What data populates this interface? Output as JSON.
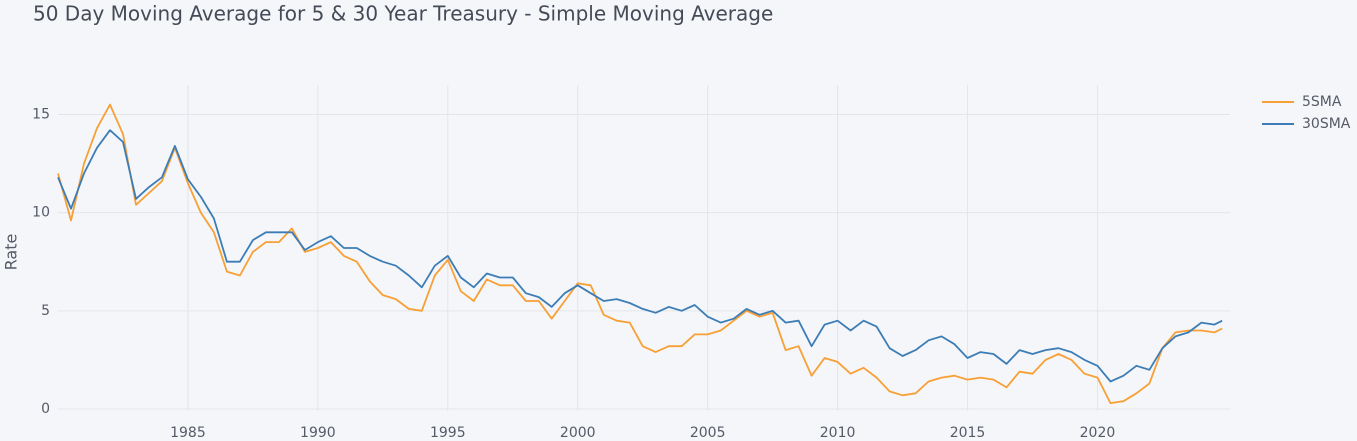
{
  "chart_data": {
    "type": "line",
    "title": "50 Day Moving Average for 5 & 30 Year Treasury - Simple Moving Average",
    "y_label": "Rate",
    "x": [
      1980.0,
      1980.5,
      1981.0,
      1981.5,
      1982.0,
      1982.5,
      1983.0,
      1983.5,
      1984.0,
      1984.5,
      1985.0,
      1985.5,
      1986.0,
      1986.5,
      1987.0,
      1987.5,
      1988.0,
      1988.5,
      1989.0,
      1989.5,
      1990.0,
      1990.5,
      1991.0,
      1991.5,
      1992.0,
      1992.5,
      1993.0,
      1993.5,
      1994.0,
      1994.5,
      1995.0,
      1995.5,
      1996.0,
      1996.5,
      1997.0,
      1997.5,
      1998.0,
      1998.5,
      1999.0,
      1999.5,
      2000.0,
      2000.5,
      2001.0,
      2001.5,
      2002.0,
      2002.5,
      2003.0,
      2003.5,
      2004.0,
      2004.5,
      2005.0,
      2005.5,
      2006.0,
      2006.5,
      2007.0,
      2007.5,
      2008.0,
      2008.5,
      2009.0,
      2009.5,
      2010.0,
      2010.5,
      2011.0,
      2011.5,
      2012.0,
      2012.5,
      2013.0,
      2013.5,
      2014.0,
      2014.5,
      2015.0,
      2015.5,
      2016.0,
      2016.5,
      2017.0,
      2017.5,
      2018.0,
      2018.5,
      2019.0,
      2019.5,
      2020.0,
      2020.5,
      2021.0,
      2021.5,
      2022.0,
      2022.5,
      2023.0,
      2023.5,
      2024.0,
      2024.5,
      2024.8
    ],
    "series": [
      {
        "name": "5SMA",
        "color": "#f7a035",
        "values": [
          12.0,
          9.6,
          12.5,
          14.3,
          15.5,
          14.0,
          10.4,
          11.0,
          11.6,
          13.3,
          11.5,
          10.0,
          9.0,
          7.0,
          6.8,
          8.0,
          8.5,
          8.5,
          9.2,
          8.0,
          8.2,
          8.5,
          7.8,
          7.5,
          6.5,
          5.8,
          5.6,
          5.1,
          5.0,
          6.8,
          7.6,
          6.0,
          5.5,
          6.6,
          6.3,
          6.3,
          5.5,
          5.5,
          4.6,
          5.5,
          6.4,
          6.3,
          4.8,
          4.5,
          4.4,
          3.2,
          2.9,
          3.2,
          3.2,
          3.8,
          3.8,
          4.0,
          4.5,
          5.0,
          4.7,
          4.9,
          3.0,
          3.2,
          1.7,
          2.6,
          2.4,
          1.8,
          2.1,
          1.6,
          0.9,
          0.7,
          0.8,
          1.4,
          1.6,
          1.7,
          1.5,
          1.6,
          1.5,
          1.1,
          1.9,
          1.8,
          2.5,
          2.8,
          2.5,
          1.8,
          1.6,
          0.3,
          0.4,
          0.8,
          1.3,
          3.1,
          3.9,
          4.0,
          4.0,
          3.9,
          4.1
        ]
      },
      {
        "name": "30SMA",
        "color": "#3d7db5",
        "values": [
          11.8,
          10.2,
          12.0,
          13.3,
          14.2,
          13.6,
          10.7,
          11.3,
          11.8,
          13.4,
          11.7,
          10.8,
          9.7,
          7.5,
          7.5,
          8.6,
          9.0,
          9.0,
          9.0,
          8.1,
          8.5,
          8.8,
          8.2,
          8.2,
          7.8,
          7.5,
          7.3,
          6.8,
          6.2,
          7.3,
          7.8,
          6.7,
          6.2,
          6.9,
          6.7,
          6.7,
          5.9,
          5.7,
          5.2,
          5.9,
          6.3,
          5.9,
          5.5,
          5.6,
          5.4,
          5.1,
          4.9,
          5.2,
          5.0,
          5.3,
          4.7,
          4.4,
          4.6,
          5.1,
          4.8,
          5.0,
          4.4,
          4.5,
          3.2,
          4.3,
          4.5,
          4.0,
          4.5,
          4.2,
          3.1,
          2.7,
          3.0,
          3.5,
          3.7,
          3.3,
          2.6,
          2.9,
          2.8,
          2.3,
          3.0,
          2.8,
          3.0,
          3.1,
          2.9,
          2.5,
          2.2,
          1.4,
          1.7,
          2.2,
          2.0,
          3.1,
          3.7,
          3.9,
          4.4,
          4.3,
          4.5
        ]
      }
    ],
    "xlim": [
      1980.0,
      2025.1
    ],
    "xticks": [
      1985,
      1990,
      1995,
      2000,
      2005,
      2010,
      2015,
      2020
    ],
    "ylim": [
      -0.1,
      16.5
    ],
    "yticks": [
      0,
      5,
      10,
      15
    ],
    "grid": true,
    "legend": "top-right"
  }
}
